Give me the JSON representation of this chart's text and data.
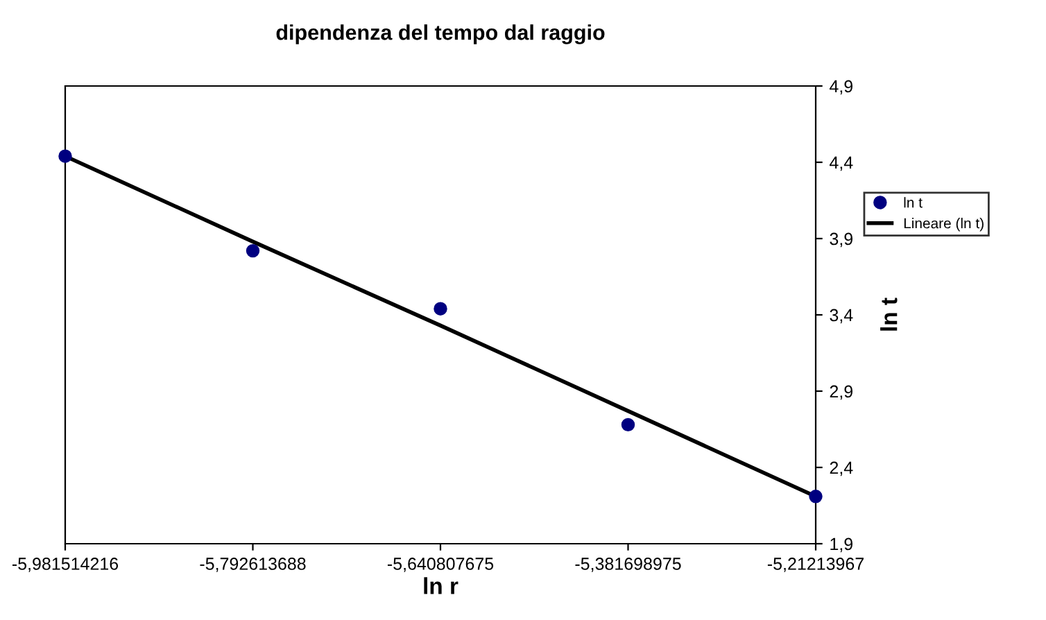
{
  "chart_data": {
    "type": "scatter",
    "title": "dipendenza del tempo dal raggio",
    "xlabel": "ln r",
    "ylabel": "ln t",
    "categories": [
      "-5,981514216",
      "-5,792613688",
      "-5,640807675",
      "-5,381698975",
      "-5,21213967"
    ],
    "series": [
      {
        "name": "ln t",
        "color": "#000080",
        "marker": "circle",
        "values": [
          4.44,
          3.82,
          3.44,
          2.68,
          2.21
        ]
      },
      {
        "name": "Lineare (ln t)",
        "type": "line",
        "color": "#000000",
        "line_style": "solid",
        "values": [
          4.44,
          3.88,
          3.33,
          2.77,
          2.21
        ]
      }
    ],
    "ylim": [
      1.9,
      4.9
    ],
    "yticks": [
      {
        "value": 1.9,
        "label": "1,9"
      },
      {
        "value": 2.4,
        "label": "2,4"
      },
      {
        "value": 2.9,
        "label": "2,9"
      },
      {
        "value": 3.4,
        "label": "3,4"
      },
      {
        "value": 3.9,
        "label": "3,9"
      },
      {
        "value": 4.4,
        "label": "4,4"
      },
      {
        "value": 4.9,
        "label": "4,9"
      }
    ],
    "grid": false,
    "legend": "right"
  }
}
